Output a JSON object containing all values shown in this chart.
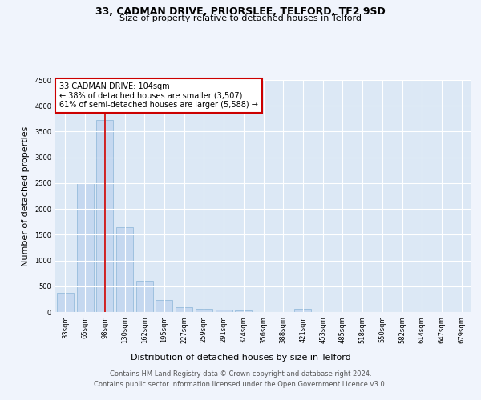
{
  "title1": "33, CADMAN DRIVE, PRIORSLEE, TELFORD, TF2 9SD",
  "title2": "Size of property relative to detached houses in Telford",
  "xlabel": "Distribution of detached houses by size in Telford",
  "ylabel": "Number of detached properties",
  "categories": [
    "33sqm",
    "65sqm",
    "98sqm",
    "130sqm",
    "162sqm",
    "195sqm",
    "227sqm",
    "259sqm",
    "291sqm",
    "324sqm",
    "356sqm",
    "388sqm",
    "421sqm",
    "453sqm",
    "485sqm",
    "518sqm",
    "550sqm",
    "582sqm",
    "614sqm",
    "647sqm",
    "679sqm"
  ],
  "values": [
    380,
    2500,
    3720,
    1640,
    600,
    240,
    100,
    65,
    50,
    35,
    0,
    0,
    60,
    0,
    0,
    0,
    0,
    0,
    0,
    0,
    0
  ],
  "bar_color": "#c5d8f0",
  "bar_edge_color": "#8ab4d8",
  "vline_x_index": 2,
  "vline_color": "#cc0000",
  "ylim_max": 4500,
  "yticks": [
    0,
    500,
    1000,
    1500,
    2000,
    2500,
    3000,
    3500,
    4000,
    4500
  ],
  "annotation_title": "33 CADMAN DRIVE: 104sqm",
  "annotation_line1": "← 38% of detached houses are smaller (3,507)",
  "annotation_line2": "61% of semi-detached houses are larger (5,588) →",
  "footer1": "Contains HM Land Registry data © Crown copyright and database right 2024.",
  "footer2": "Contains public sector information licensed under the Open Government Licence v3.0.",
  "fig_bg": "#f0f4fc",
  "plot_bg": "#dce8f5",
  "grid_color": "#ffffff",
  "title1_fs": 9,
  "title2_fs": 8,
  "annot_fs": 7,
  "tick_fs": 6,
  "ylabel_fs": 8,
  "xlabel_fs": 8,
  "footer_fs": 6
}
